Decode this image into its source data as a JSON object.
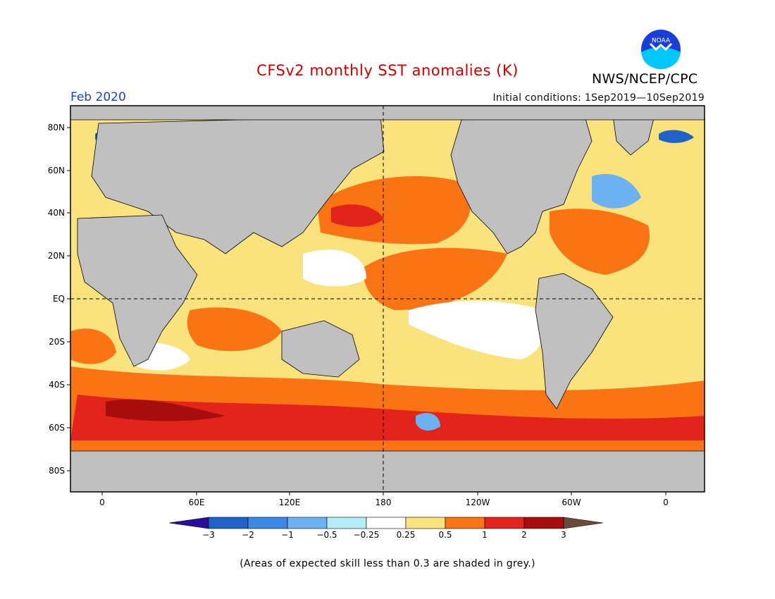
{
  "title": "CFSv2 monthly SST anomalies (K)",
  "agency": "NWS/NCEP/CPC",
  "logo_text": "NOAA",
  "valid_month": "Feb 2020",
  "initial_conditions": "Initial conditions: 1Sep2019—10Sep2019",
  "footnote": "(Areas of expected skill less than 0.3 are shaded in grey.)",
  "lat_labels": [
    "80N",
    "60N",
    "40N",
    "20N",
    "EQ",
    "20S",
    "40S",
    "60S",
    "80S"
  ],
  "lon_labels": [
    "0",
    "60E",
    "120E",
    "180",
    "120W",
    "60W",
    "0"
  ],
  "colorbar": {
    "labels": [
      "−3",
      "−2",
      "−1",
      "−0.5",
      "−0.25",
      "0.25",
      "0.5",
      "1",
      "2",
      "3"
    ],
    "colors": [
      "#2a0e9a",
      "#1f63c9",
      "#3c88e6",
      "#6cb2f0",
      "#b4eef4",
      "#ffffff",
      "#fae37c",
      "#fa7414",
      "#e3241c",
      "#a80d0d",
      "#6e4a3c"
    ]
  },
  "map": {
    "land_color": "#c0c0c0",
    "skill_mask_color": "#c0c0c0"
  }
}
